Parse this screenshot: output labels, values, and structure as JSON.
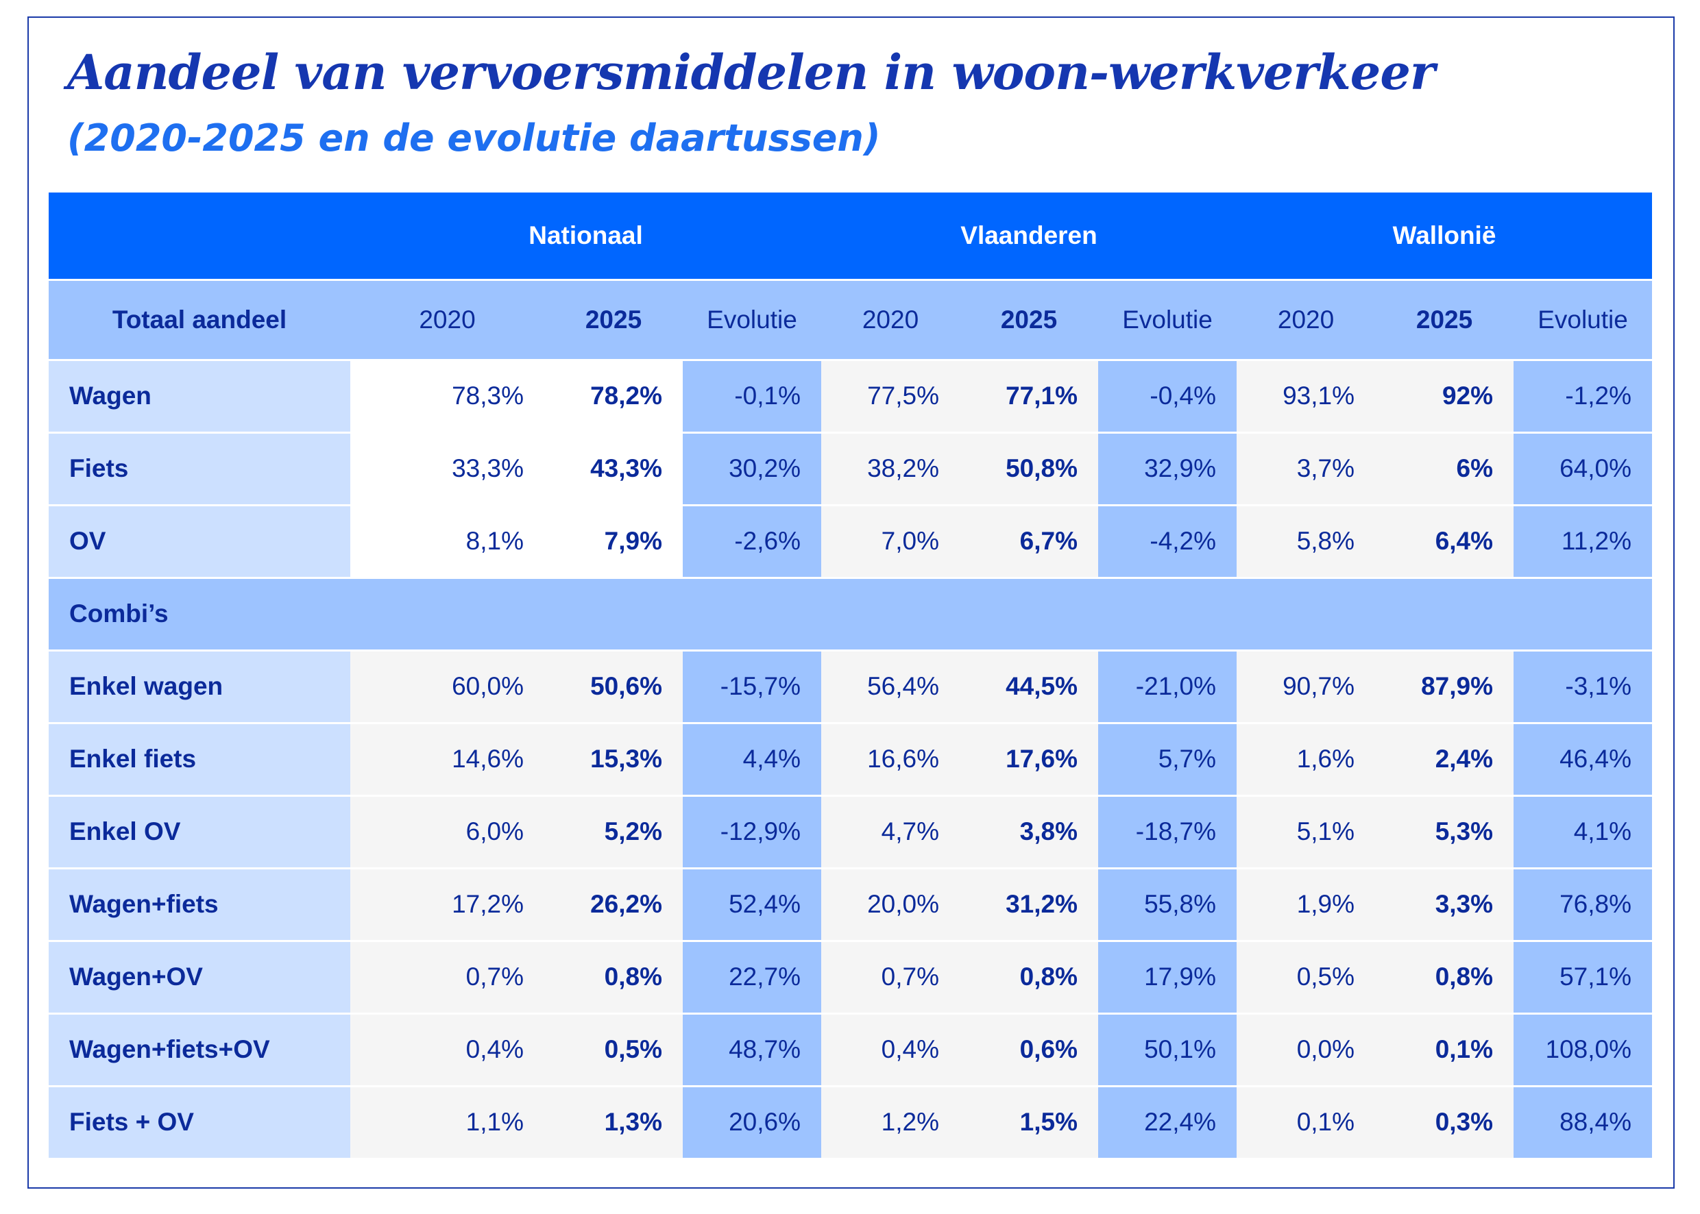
{
  "title": "Aandeel van vervoersmiddelen in woon-werkverkeer",
  "subtitle": "(2020-2025 en de evolutie daartussen)",
  "regions": [
    "Nationaal",
    "Vlaanderen",
    "Wallonië"
  ],
  "subheader": {
    "label": "Totaal aandeel",
    "cols": [
      "2020",
      "2025",
      "Evolutie",
      "2020",
      "2025",
      "Evolutie",
      "2020",
      "2025",
      "Evolutie"
    ]
  },
  "totaal_rows": [
    {
      "label": "Wagen",
      "values": [
        "78,3%",
        "78,2%",
        "-0,1%",
        "77,5%",
        "77,1%",
        "-0,4%",
        "93,1%",
        "92%",
        "-1,2%"
      ]
    },
    {
      "label": "Fiets",
      "values": [
        "33,3%",
        "43,3%",
        "30,2%",
        "38,2%",
        "50,8%",
        "32,9%",
        "3,7%",
        "6%",
        "64,0%"
      ]
    },
    {
      "label": "OV",
      "values": [
        "8,1%",
        "7,9%",
        "-2,6%",
        "7,0%",
        "6,7%",
        "-4,2%",
        "5,8%",
        "6,4%",
        "11,2%"
      ]
    }
  ],
  "section_label": "Combi’s",
  "combi_rows": [
    {
      "label": "Enkel wagen",
      "values": [
        "60,0%",
        "50,6%",
        "-15,7%",
        "56,4%",
        "44,5%",
        "-21,0%",
        "90,7%",
        "87,9%",
        "-3,1%"
      ]
    },
    {
      "label": "Enkel fiets",
      "values": [
        "14,6%",
        "15,3%",
        "4,4%",
        "16,6%",
        "17,6%",
        "5,7%",
        "1,6%",
        "2,4%",
        "46,4%"
      ]
    },
    {
      "label": "Enkel OV",
      "values": [
        "6,0%",
        "5,2%",
        "-12,9%",
        "4,7%",
        "3,8%",
        "-18,7%",
        "5,1%",
        "5,3%",
        "4,1%"
      ]
    },
    {
      "label": "Wagen+fiets",
      "values": [
        "17,2%",
        "26,2%",
        "52,4%",
        "20,0%",
        "31,2%",
        "55,8%",
        "1,9%",
        "3,3%",
        "76,8%"
      ]
    },
    {
      "label": "Wagen+OV",
      "values": [
        "0,7%",
        "0,8%",
        "22,7%",
        "0,7%",
        "0,8%",
        "17,9%",
        "0,5%",
        "0,8%",
        "57,1%"
      ]
    },
    {
      "label": "Wagen+fiets+OV",
      "values": [
        "0,4%",
        "0,5%",
        "48,7%",
        "0,4%",
        "0,6%",
        "50,1%",
        "0,0%",
        "0,1%",
        "108,0%"
      ]
    },
    {
      "label": "Fiets + OV",
      "values": [
        "1,1%",
        "1,3%",
        "20,6%",
        "1,2%",
        "1,5%",
        "22,4%",
        "0,1%",
        "0,3%",
        "88,4%"
      ]
    }
  ],
  "colors": {
    "header": "#0066ff",
    "sub": "#9dc3ff",
    "label": "#cce0ff",
    "text": "#0b2a9a"
  }
}
